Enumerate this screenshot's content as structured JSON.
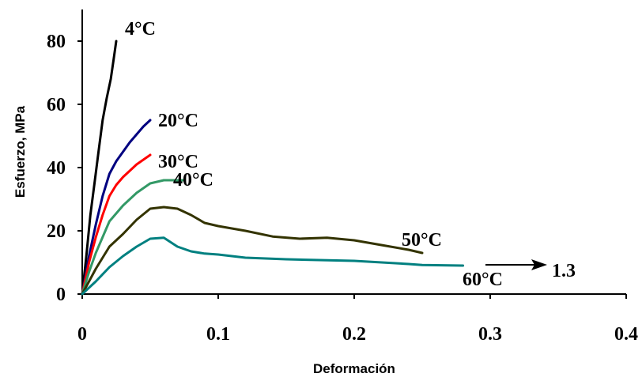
{
  "chart_data": {
    "type": "line",
    "xlabel": "Deformación",
    "ylabel": "Esfuerzo, MPa",
    "xlim": [
      0,
      0.4
    ],
    "ylim": [
      0,
      90
    ],
    "x_ticks": [
      0,
      0.1,
      0.2,
      0.3,
      0.4
    ],
    "x_tick_labels": [
      "0",
      "0.1",
      "0.2",
      "0.3",
      "0.4"
    ],
    "y_ticks": [
      0,
      20,
      40,
      60,
      80
    ],
    "y_tick_labels": [
      "0",
      "20",
      "40",
      "60",
      "80"
    ],
    "grid": false,
    "legend": "none",
    "series": [
      {
        "name": "4°C",
        "color": "#000000",
        "x": [
          0,
          0.003,
          0.006,
          0.009,
          0.012,
          0.015,
          0.018,
          0.021,
          0.023,
          0.025
        ],
        "y": [
          0,
          12,
          25,
          35,
          45,
          55,
          62,
          68,
          74,
          80
        ]
      },
      {
        "name": "20°C",
        "color": "#000080",
        "x": [
          0,
          0.005,
          0.01,
          0.015,
          0.02,
          0.025,
          0.03,
          0.035,
          0.04,
          0.045,
          0.05
        ],
        "y": [
          0,
          12,
          22,
          31,
          38,
          42,
          45,
          48,
          50.5,
          53,
          55
        ]
      },
      {
        "name": "30°C",
        "color": "#ff0000",
        "x": [
          0,
          0.005,
          0.01,
          0.015,
          0.02,
          0.025,
          0.03,
          0.035,
          0.04,
          0.045,
          0.05
        ],
        "y": [
          0,
          10,
          18,
          25,
          31,
          34.5,
          37,
          39,
          41,
          42.5,
          44
        ]
      },
      {
        "name": "40°C",
        "color": "#339966",
        "x": [
          0,
          0.005,
          0.01,
          0.015,
          0.02,
          0.03,
          0.04,
          0.05,
          0.06,
          0.075
        ],
        "y": [
          0,
          7,
          13,
          18,
          23,
          28,
          32,
          35,
          36,
          36
        ]
      },
      {
        "name": "50°C",
        "color": "#333300",
        "x": [
          0,
          0.01,
          0.02,
          0.03,
          0.04,
          0.05,
          0.06,
          0.07,
          0.08,
          0.09,
          0.1,
          0.12,
          0.14,
          0.16,
          0.18,
          0.2,
          0.22,
          0.24,
          0.25
        ],
        "y": [
          0,
          8,
          15,
          19,
          23.5,
          27,
          27.5,
          27,
          25,
          22.5,
          21.5,
          20,
          18.2,
          17.5,
          17.8,
          17,
          15.5,
          14,
          13
        ]
      },
      {
        "name": "60°C",
        "color": "#008080",
        "x": [
          0,
          0.01,
          0.02,
          0.03,
          0.04,
          0.05,
          0.06,
          0.07,
          0.08,
          0.09,
          0.1,
          0.12,
          0.15,
          0.2,
          0.24,
          0.25,
          0.28
        ],
        "y": [
          0,
          4,
          8.5,
          12,
          15,
          17.5,
          17.8,
          15,
          13.5,
          12.8,
          12.5,
          11.5,
          11,
          10.5,
          9.5,
          9.2,
          9
        ]
      }
    ],
    "annotations": [
      {
        "text": "1.3",
        "arrow": "right"
      }
    ]
  }
}
